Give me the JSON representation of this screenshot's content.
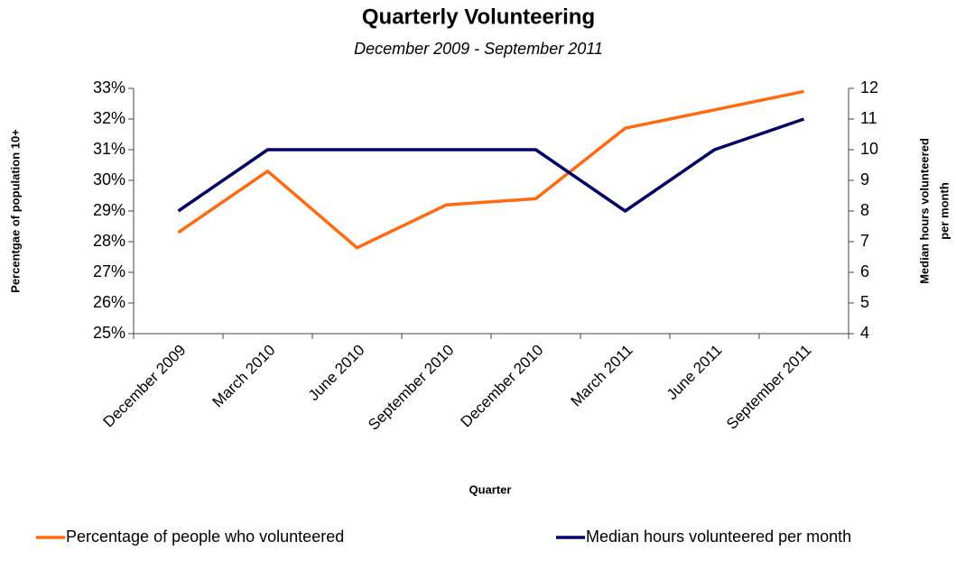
{
  "chart_data": {
    "type": "line",
    "title": "Quarterly Volunteering",
    "subtitle": "December 2009 - September 2011",
    "xlabel": "Quarter",
    "ylabel": "Percentgae of population 10+",
    "y2label": [
      "Median hours volunteered",
      "per month"
    ],
    "categories": [
      "December 2009",
      "March 2010",
      "June 2010",
      "September 2010",
      "December 2010",
      "March 2011",
      "June 2011",
      "September 2011"
    ],
    "series": [
      {
        "name": "Percentage of people who volunteered",
        "color": "#ff6a10",
        "values": [
          28.3,
          30.3,
          27.8,
          29.2,
          29.4,
          31.7,
          32.3,
          32.9
        ]
      },
      {
        "name": "Median hours volunteered per month",
        "color": "#000066",
        "axis": "y2",
        "values": [
          8,
          10,
          10,
          10,
          10,
          8,
          10,
          11
        ]
      }
    ],
    "ylim": [
      25,
      33
    ],
    "yticks": [
      {
        "value": 25,
        "label": "25%"
      },
      {
        "value": 26,
        "label": "26%"
      },
      {
        "value": 27,
        "label": "27%"
      },
      {
        "value": 28,
        "label": "28%"
      },
      {
        "value": 29,
        "label": "29%"
      },
      {
        "value": 30,
        "label": "30%"
      },
      {
        "value": 31,
        "label": "31%"
      },
      {
        "value": 32,
        "label": "32%"
      },
      {
        "value": 33,
        "label": "33%"
      }
    ],
    "y2lim": [
      4,
      12
    ],
    "y2ticks": [
      4,
      5,
      6,
      7,
      8,
      9,
      10,
      11,
      12
    ],
    "grid": false,
    "legend": "bottom"
  }
}
